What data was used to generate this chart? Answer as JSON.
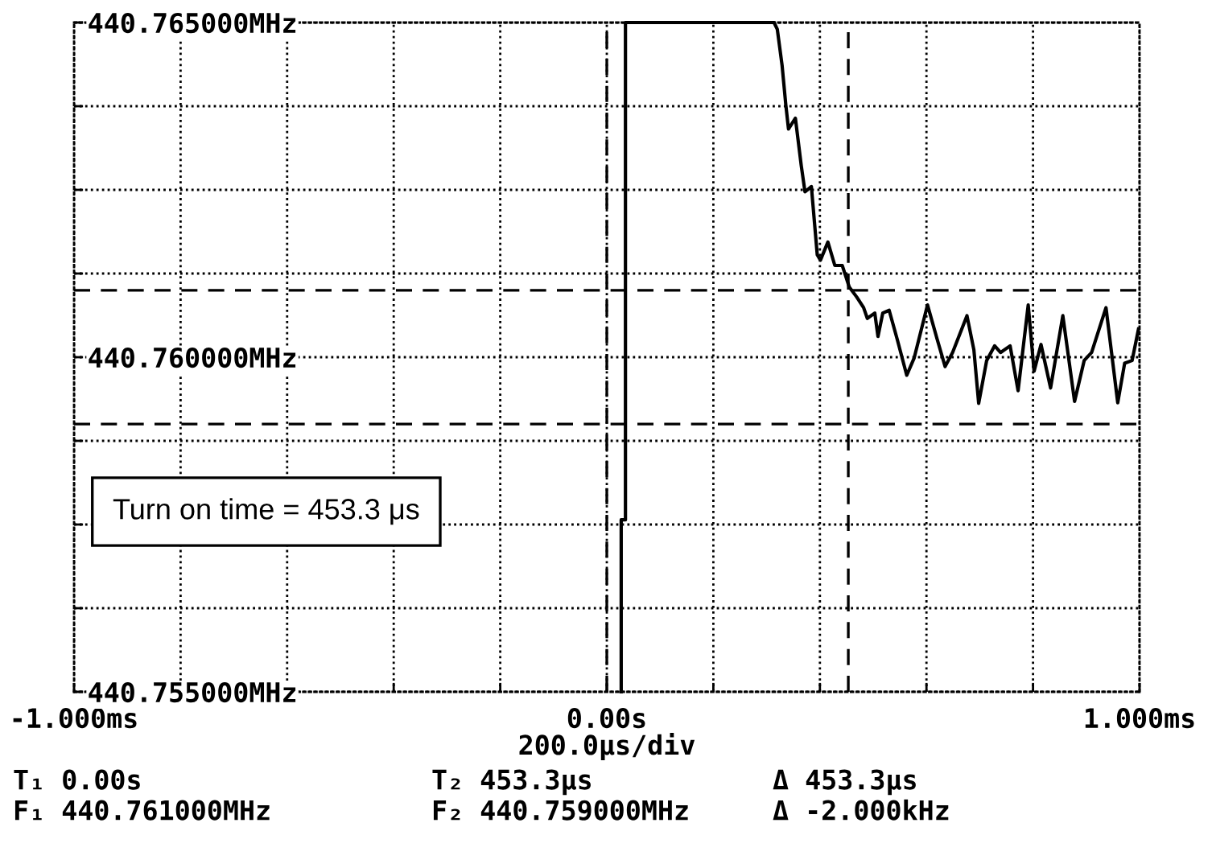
{
  "chart_data": {
    "type": "line",
    "xlabel": "200.0µs/div",
    "xlim": [
      -1,
      1
    ],
    "xticks": [
      {
        "value": -1,
        "label": "-1.000ms"
      },
      {
        "value": -0.8,
        "label": null
      },
      {
        "value": -0.6,
        "label": null
      },
      {
        "value": -0.4,
        "label": null
      },
      {
        "value": -0.2,
        "label": null
      },
      {
        "value": 0,
        "label": "0.00s"
      },
      {
        "value": 0.2,
        "label": null
      },
      {
        "value": 0.4,
        "label": null
      },
      {
        "value": 0.6,
        "label": null
      },
      {
        "value": 0.8,
        "label": null
      },
      {
        "value": 1,
        "label": "1.000ms"
      }
    ],
    "ylim": [
      440.755,
      440.765
    ],
    "yticks": [
      {
        "value": 440.755,
        "label": "440.755000MHz"
      },
      {
        "value": 440.75625,
        "label": null
      },
      {
        "value": 440.7575,
        "label": null
      },
      {
        "value": 440.75875,
        "label": null
      },
      {
        "value": 440.76,
        "label": "440.760000MHz"
      },
      {
        "value": 440.76125,
        "label": null
      },
      {
        "value": 440.7625,
        "label": null
      },
      {
        "value": 440.76375,
        "label": null
      },
      {
        "value": 440.765,
        "label": "440.765000MHz"
      }
    ],
    "grid": true,
    "legend": false,
    "marker": "none",
    "line_style": "solid",
    "series": [
      {
        "color": "#000000",
        "x": [
          0.027,
          0.027,
          0.035,
          0.035,
          0.314,
          0.32,
          0.329,
          0.336,
          0.341,
          0.354,
          0.365,
          0.372,
          0.384,
          0.395,
          0.401,
          0.415,
          0.428,
          0.442,
          0.455,
          0.469,
          0.482,
          0.489,
          0.503,
          0.509,
          0.518,
          0.53,
          0.545,
          0.563,
          0.577,
          0.602,
          0.62,
          0.635,
          0.649,
          0.676,
          0.689,
          0.698,
          0.713,
          0.728,
          0.739,
          0.757,
          0.772,
          0.791,
          0.802,
          0.815,
          0.833,
          0.856,
          0.878,
          0.896,
          0.91,
          0.937,
          0.959,
          0.972,
          0.986,
          0.998
        ],
        "values": [
          440.755,
          440.75757,
          440.75757,
          440.765,
          440.765,
          440.7649,
          440.76436,
          440.76377,
          440.76341,
          440.76357,
          440.76286,
          440.76247,
          440.76255,
          440.76153,
          440.76145,
          440.76172,
          440.76137,
          440.76137,
          440.76105,
          440.7609,
          440.76074,
          440.76058,
          440.76066,
          440.76031,
          440.76066,
          440.7607,
          440.76027,
          440.75973,
          440.75999,
          440.76078,
          440.76027,
          440.75986,
          440.76007,
          440.76062,
          440.76011,
          440.75931,
          440.75995,
          440.76017,
          440.76007,
          440.76017,
          440.7595,
          440.76078,
          440.75979,
          440.76019,
          440.75954,
          440.76062,
          440.75934,
          440.75995,
          440.76007,
          440.76074,
          440.75932,
          440.75991,
          440.75995,
          440.76042
        ]
      }
    ],
    "ref_lines": [
      {
        "axis": "x",
        "value": 0,
        "line_style": "dashed",
        "color": "#000000"
      },
      {
        "axis": "x",
        "value": 0.4533,
        "line_style": "dashed",
        "color": "#000000"
      },
      {
        "axis": "y",
        "value": 440.761,
        "line_style": "dashed",
        "color": "#000000"
      },
      {
        "axis": "y",
        "value": 440.759,
        "line_style": "dashed",
        "color": "#000000"
      }
    ],
    "annotations": [
      "Turn on time = 453.3 μs",
      "T₁ 0.00s",
      "F₁ 440.761000MHz",
      "T₂ 453.3µs",
      "F₂ 440.759000MHz",
      "Δ 453.3µs",
      "Δ -2.000kHz"
    ]
  }
}
